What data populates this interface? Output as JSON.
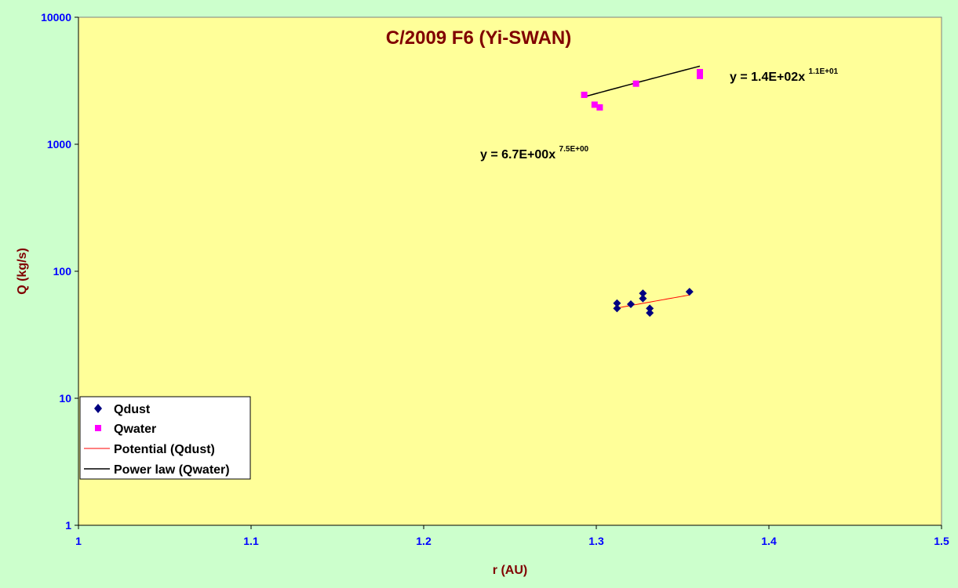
{
  "chart_data": {
    "type": "scatter",
    "title": "C/2009 F6 (Yi-SWAN)",
    "xlabel": "r (AU)",
    "ylabel": "Q (kg/s)",
    "xlim": [
      1,
      1.5
    ],
    "ylim": [
      1,
      10000
    ],
    "yscale": "log",
    "x_ticks": [
      "1",
      "1.1",
      "1.2",
      "1.3",
      "1.4",
      "1.5"
    ],
    "y_ticks": [
      "1",
      "10",
      "100",
      "1000",
      "10000"
    ],
    "grid": false,
    "legend_position": "bottom-left",
    "colors": {
      "plot_background": "#ffff99",
      "page_background": "#ccffcc",
      "qdust": "#000080",
      "qwater": "#ff00ff",
      "qdust_fit": "#ff0000",
      "qwater_fit": "#000000",
      "title": "#800000",
      "ticks": "#0000ff"
    },
    "series": [
      {
        "name": "Qdust",
        "marker": "diamond",
        "points": [
          [
            1.312,
            56
          ],
          [
            1.312,
            51
          ],
          [
            1.32,
            55
          ],
          [
            1.327,
            67
          ],
          [
            1.327,
            61
          ],
          [
            1.331,
            51
          ],
          [
            1.331,
            47
          ],
          [
            1.354,
            69
          ]
        ]
      },
      {
        "name": "Qwater",
        "marker": "square",
        "points": [
          [
            1.293,
            2450
          ],
          [
            1.299,
            2050
          ],
          [
            1.302,
            1950
          ],
          [
            1.323,
            3000
          ],
          [
            1.36,
            3700
          ],
          [
            1.36,
            3450
          ]
        ]
      }
    ],
    "trendlines": [
      {
        "name": "Potential (Qdust)",
        "series": "Qdust",
        "type": "power",
        "coefficient": 6.7,
        "exponent": 7.5,
        "x_range": [
          1.312,
          1.354
        ]
      },
      {
        "name": "Power law (Qwater)",
        "series": "Qwater",
        "type": "power",
        "coefficient": 140,
        "exponent": 11,
        "x_range": [
          1.293,
          1.36
        ]
      }
    ],
    "annotations": [
      {
        "for": "Qwater",
        "base": "y = 1.4E+02x",
        "exponent": "1.1E+01"
      },
      {
        "for": "Qdust",
        "base": "y = 6.7E+00x",
        "exponent": "7.5E+00"
      }
    ]
  }
}
